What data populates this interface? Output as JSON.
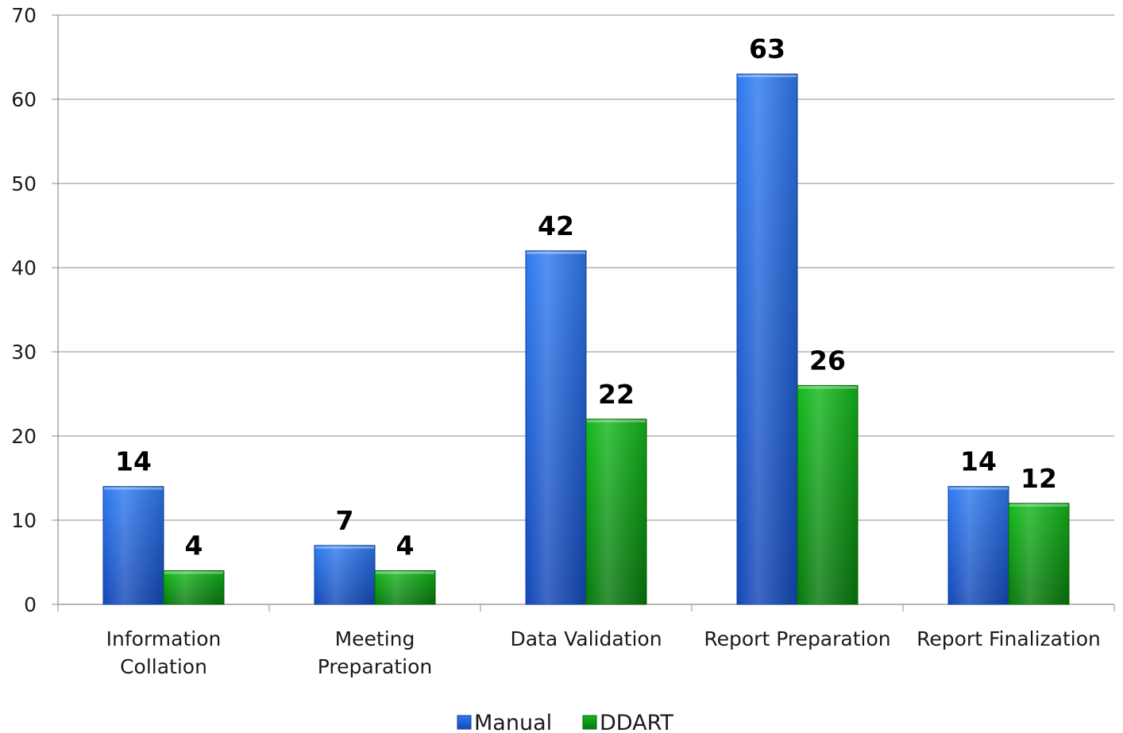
{
  "chart_data": {
    "type": "bar",
    "categories": [
      [
        "Information",
        "Collation"
      ],
      [
        "Meeting",
        "Preparation"
      ],
      [
        "Data Validation"
      ],
      [
        "Report Preparation"
      ],
      [
        "Report Finalization"
      ]
    ],
    "series": [
      {
        "name": "Manual",
        "values": [
          14,
          7,
          42,
          63,
          14
        ],
        "color": "#1f5fd6"
      },
      {
        "name": "DDART",
        "values": [
          4,
          4,
          22,
          26,
          12
        ],
        "color": "#0a9a12"
      }
    ],
    "yticks": [
      "0",
      "10",
      "20",
      "30",
      "40",
      "50",
      "60",
      "70"
    ],
    "ylim": [
      0,
      70
    ],
    "grid": true,
    "legend_position": "bottom",
    "title": "",
    "xlabel": "",
    "ylabel": ""
  }
}
